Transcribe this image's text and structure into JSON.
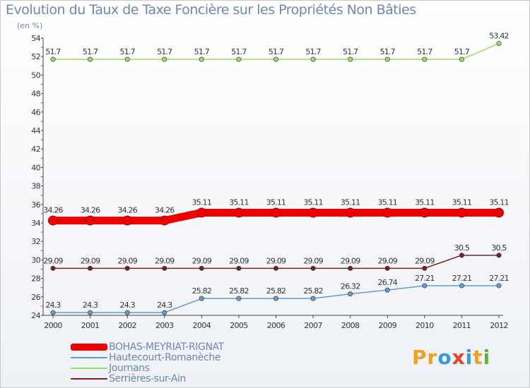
{
  "title": "Evolution du Taux de Taxe Foncière sur les Propriétés Non Bâties",
  "unit": "(en %)",
  "brand": {
    "letters": [
      "P",
      "r",
      "o",
      "x",
      "i",
      "t",
      "i"
    ],
    "colors": [
      "#f0a020",
      "#f0a020",
      "#3a9ad9",
      "#e8402a",
      "#3a9ad9",
      "#f0a020",
      "#59b833"
    ]
  },
  "chart_data": {
    "type": "line",
    "x": [
      "2000",
      "2001",
      "2002",
      "2003",
      "2004",
      "2005",
      "2006",
      "2007",
      "2008",
      "2009",
      "2010",
      "2011",
      "2012"
    ],
    "ylim": [
      24,
      54
    ],
    "yticks": [
      24,
      26,
      28,
      30,
      32,
      34,
      36,
      38,
      40,
      42,
      44,
      46,
      48,
      50,
      52,
      54
    ],
    "grid": false,
    "legend_position": "bottom-left",
    "series": [
      {
        "name": "BOHAS-MEYRIAT-RIGNAT",
        "color": "#ee0000",
        "bold": true,
        "values": [
          34.26,
          34.26,
          34.26,
          34.26,
          35.11,
          35.11,
          35.11,
          35.11,
          35.11,
          35.11,
          35.11,
          35.11,
          35.11
        ],
        "labels": [
          "34.26",
          "34.26",
          "34.26",
          "34.26",
          "35.11",
          "35.11",
          "35.11",
          "35.11",
          "35.11",
          "35.11",
          "35.11",
          "35.11",
          "35.11"
        ]
      },
      {
        "name": "Hautecourt-Romanèche",
        "color": "#6699cc",
        "bold": false,
        "values": [
          24.3,
          24.3,
          24.3,
          24.3,
          25.82,
          25.82,
          25.82,
          25.82,
          26.32,
          26.74,
          27.21,
          27.21,
          27.21
        ],
        "labels": [
          "24.3",
          "24.3",
          "24.3",
          "24.3",
          "25.82",
          "25.82",
          "25.82",
          "25.82",
          "26.32",
          "26.74",
          "27.21",
          "27.21",
          "27.21"
        ]
      },
      {
        "name": "Journans",
        "color": "#99dd66",
        "bold": false,
        "values": [
          51.7,
          51.7,
          51.7,
          51.7,
          51.7,
          51.7,
          51.7,
          51.7,
          51.7,
          51.7,
          51.7,
          51.7,
          53.42
        ],
        "labels": [
          "51.7",
          "51.7",
          "51.7",
          "51.7",
          "51.7",
          "51.7",
          "51.7",
          "51.7",
          "51.7",
          "51.7",
          "51.7",
          "51.7",
          "53.42"
        ]
      },
      {
        "name": "Serrières-sur-Ain",
        "color": "#772222",
        "bold": false,
        "values": [
          29.09,
          29.09,
          29.09,
          29.09,
          29.09,
          29.09,
          29.09,
          29.09,
          29.09,
          29.09,
          29.09,
          30.5,
          30.5
        ],
        "labels": [
          "29.09",
          "29.09",
          "29.09",
          "29.09",
          "29.09",
          "29.09",
          "29.09",
          "29.09",
          "29.09",
          "29.09",
          "29.09",
          "30.5",
          "30.5"
        ]
      }
    ]
  }
}
